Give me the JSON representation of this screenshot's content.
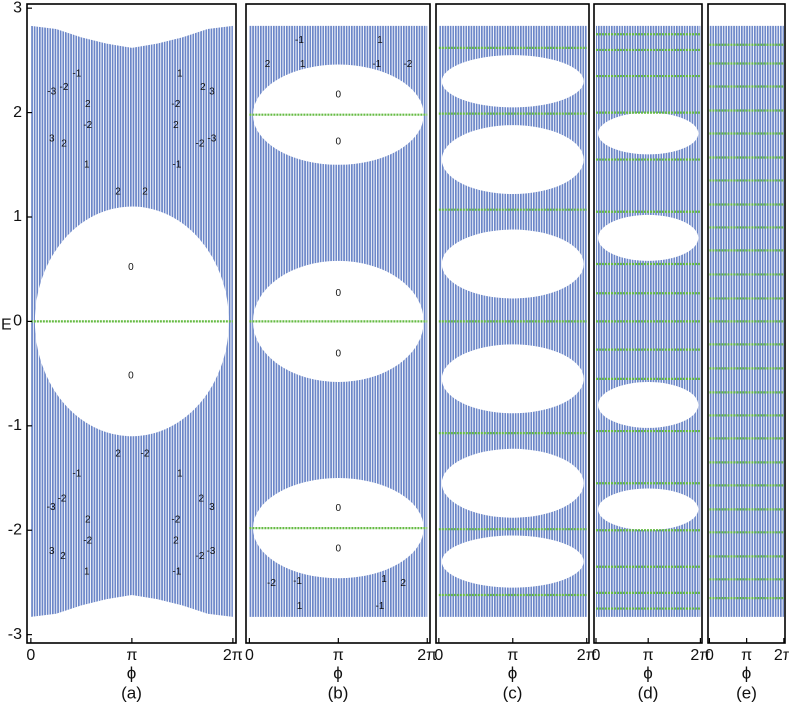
{
  "chart_data": [
    {
      "type": "spectrum",
      "caption": "(a)",
      "xlabel": "ϕ",
      "ylabel": "E",
      "color": "#6b86c8",
      "flat_color": "#66bb44",
      "xlim": [
        -0.12,
        6.38
      ],
      "ylim": [
        -3.08,
        3.04
      ],
      "xticks": [
        0,
        {
          "value": 3.1416,
          "label": "π"
        },
        {
          "value": 6.2832,
          "label": "2π"
        }
      ],
      "yticks": [
        -3,
        -2,
        -1,
        0,
        1,
        2,
        3
      ],
      "x": [
        0,
        0.785,
        1.571,
        2.356,
        3.142,
        3.927,
        4.712,
        5.498,
        6.283
      ],
      "upper": [
        2.83,
        2.8,
        2.72,
        2.66,
        2.62,
        2.66,
        2.72,
        2.8,
        2.83
      ],
      "lower": [
        -2.83,
        -2.8,
        -2.72,
        -2.66,
        -2.62,
        -2.66,
        -2.72,
        -2.8,
        -2.83
      ],
      "gaps": [
        {
          "center": 0,
          "half": 1.1
        }
      ],
      "flat_bands": [
        0
      ],
      "annotations": [
        {
          "x": 1.43,
          "y": 2.37,
          "text": "-1"
        },
        {
          "x": 4.63,
          "y": 2.37,
          "text": "1"
        },
        {
          "x": 0.65,
          "y": 2.2,
          "text": "-3"
        },
        {
          "x": 1.03,
          "y": 2.24,
          "text": "-2"
        },
        {
          "x": 5.35,
          "y": 2.24,
          "text": "2"
        },
        {
          "x": 5.63,
          "y": 2.2,
          "text": "3"
        },
        {
          "x": 1.77,
          "y": 2.08,
          "text": "2"
        },
        {
          "x": 4.51,
          "y": 2.08,
          "text": "-2"
        },
        {
          "x": 1.77,
          "y": 1.88,
          "text": "-2"
        },
        {
          "x": 4.51,
          "y": 1.88,
          "text": "2"
        },
        {
          "x": 0.65,
          "y": 1.75,
          "text": "3"
        },
        {
          "x": 1.03,
          "y": 1.7,
          "text": "2"
        },
        {
          "x": 5.26,
          "y": 1.7,
          "text": "-2"
        },
        {
          "x": 5.63,
          "y": 1.75,
          "text": "-3"
        },
        {
          "x": 1.74,
          "y": 1.5,
          "text": "1"
        },
        {
          "x": 4.54,
          "y": 1.5,
          "text": "-1"
        },
        {
          "x": 2.71,
          "y": 1.24,
          "text": "2"
        },
        {
          "x": 3.55,
          "y": 1.24,
          "text": "2"
        },
        {
          "x": 3.11,
          "y": 0.52,
          "text": "0"
        },
        {
          "x": 3.11,
          "y": -0.52,
          "text": "0"
        },
        {
          "x": 2.71,
          "y": -1.27,
          "text": "2"
        },
        {
          "x": 3.55,
          "y": -1.27,
          "text": "-2"
        },
        {
          "x": 1.43,
          "y": -1.46,
          "text": "-1"
        },
        {
          "x": 4.63,
          "y": -1.46,
          "text": "1"
        },
        {
          "x": 0.63,
          "y": -1.78,
          "text": "-3"
        },
        {
          "x": 0.97,
          "y": -1.7,
          "text": "-2"
        },
        {
          "x": 5.3,
          "y": -1.7,
          "text": "2"
        },
        {
          "x": 5.63,
          "y": -1.78,
          "text": "3"
        },
        {
          "x": 1.77,
          "y": -1.9,
          "text": "2"
        },
        {
          "x": 4.51,
          "y": -1.9,
          "text": "-2"
        },
        {
          "x": 1.77,
          "y": -2.1,
          "text": "-2"
        },
        {
          "x": 4.51,
          "y": -2.1,
          "text": "2"
        },
        {
          "x": 0.65,
          "y": -2.2,
          "text": "3"
        },
        {
          "x": 1.0,
          "y": -2.25,
          "text": "2"
        },
        {
          "x": 5.26,
          "y": -2.25,
          "text": "-2"
        },
        {
          "x": 5.6,
          "y": -2.2,
          "text": "-3"
        },
        {
          "x": 1.74,
          "y": -2.4,
          "text": "1"
        },
        {
          "x": 4.54,
          "y": -2.4,
          "text": "-1"
        }
      ]
    },
    {
      "type": "spectrum",
      "caption": "(b)",
      "xlabel": "ϕ",
      "color": "#6b86c8",
      "flat_color": "#66bb44",
      "xlim": [
        -0.12,
        6.38
      ],
      "ylim": [
        -3.08,
        3.04
      ],
      "xticks": [
        0,
        {
          "value": 3.1416,
          "label": "π"
        },
        {
          "value": 6.2832,
          "label": "2π"
        }
      ],
      "x": [
        0,
        6.283
      ],
      "upper": [
        2.83,
        2.83
      ],
      "lower": [
        -2.83,
        -2.83
      ],
      "gaps": [
        {
          "center": 0,
          "half": 0.58
        },
        {
          "center": 1.98,
          "half": 0.48
        },
        {
          "center": -1.98,
          "half": 0.48
        }
      ],
      "flat_bands": [
        1.98,
        0,
        -1.98
      ],
      "annotations": [
        {
          "x": 1.77,
          "y": 2.69,
          "text": "-1"
        },
        {
          "x": 4.61,
          "y": 2.69,
          "text": "1"
        },
        {
          "x": 0.64,
          "y": 2.46,
          "text": "2"
        },
        {
          "x": 1.88,
          "y": 2.46,
          "text": "1"
        },
        {
          "x": 4.5,
          "y": 2.46,
          "text": "-1"
        },
        {
          "x": 5.6,
          "y": 2.46,
          "text": "-2"
        },
        {
          "x": 3.14,
          "y": 2.17,
          "text": "0"
        },
        {
          "x": 3.14,
          "y": 1.72,
          "text": "0"
        },
        {
          "x": 3.14,
          "y": 0.27,
          "text": "0"
        },
        {
          "x": 3.14,
          "y": -0.31,
          "text": "0"
        },
        {
          "x": 3.14,
          "y": -1.79,
          "text": "0"
        },
        {
          "x": 3.14,
          "y": -2.18,
          "text": "0"
        },
        {
          "x": 0.78,
          "y": -2.51,
          "text": "-2"
        },
        {
          "x": 1.7,
          "y": -2.49,
          "text": "-1"
        },
        {
          "x": 4.76,
          "y": -2.47,
          "text": "1"
        },
        {
          "x": 5.43,
          "y": -2.51,
          "text": "2"
        },
        {
          "x": 1.77,
          "y": -2.73,
          "text": "1"
        },
        {
          "x": 4.61,
          "y": -2.73,
          "text": "-1"
        }
      ]
    },
    {
      "type": "spectrum",
      "caption": "(c)",
      "xlabel": "ϕ",
      "color": "#6b86c8",
      "flat_color": "#66bb44",
      "xlim": [
        -0.12,
        6.38
      ],
      "ylim": [
        -3.08,
        3.04
      ],
      "xticks": [
        0,
        {
          "value": 3.1416,
          "label": "π"
        },
        {
          "value": 6.2832,
          "label": "2π"
        }
      ],
      "x": [
        0,
        6.283
      ],
      "upper": [
        2.83,
        2.83
      ],
      "lower": [
        -2.83,
        -2.83
      ],
      "gaps": [
        {
          "center": 2.3,
          "half": 0.25
        },
        {
          "center": 1.55,
          "half": 0.33
        },
        {
          "center": 0.55,
          "half": 0.33
        },
        {
          "center": -0.55,
          "half": 0.33
        },
        {
          "center": -1.55,
          "half": 0.33
        },
        {
          "center": -2.3,
          "half": 0.25
        }
      ],
      "flat_bands": [
        2.62,
        1.99,
        1.07,
        0,
        -1.07,
        -1.99,
        -2.62
      ]
    },
    {
      "type": "spectrum",
      "caption": "(d)",
      "xlabel": "ϕ",
      "color": "#6b86c8",
      "flat_color": "#66bb44",
      "xlim": [
        -0.12,
        6.38
      ],
      "ylim": [
        -3.08,
        3.04
      ],
      "xticks": [
        0,
        {
          "value": 3.1416,
          "label": "π"
        },
        {
          "value": 6.2832,
          "label": "2π"
        }
      ],
      "x": [
        0,
        6.283
      ],
      "upper": [
        2.83,
        2.83
      ],
      "lower": [
        -2.83,
        -2.83
      ],
      "gaps": [
        {
          "center": 1.8,
          "half": 0.2
        },
        {
          "center": 0.8,
          "half": 0.22
        },
        {
          "center": -0.8,
          "half": 0.22
        },
        {
          "center": -1.8,
          "half": 0.2
        }
      ],
      "flat_bands": [
        2.75,
        2.6,
        2.35,
        2.0,
        1.55,
        1.05,
        0.55,
        0.27,
        0,
        -0.27,
        -0.55,
        -1.05,
        -1.55,
        -2.0,
        -2.35,
        -2.6,
        -2.75
      ]
    },
    {
      "type": "spectrum",
      "caption": "(e)",
      "xlabel": "ϕ",
      "color": "#6b86c8",
      "flat_color": "#66bb44",
      "xlim": [
        -0.12,
        6.38
      ],
      "ylim": [
        -3.08,
        3.04
      ],
      "xticks": [
        0,
        {
          "value": 3.1416,
          "label": "π"
        },
        {
          "value": 6.2832,
          "label": "2π"
        }
      ],
      "x": [
        0,
        6.283
      ],
      "upper": [
        2.83,
        2.83
      ],
      "lower": [
        -2.83,
        -2.83
      ],
      "flat_bands": [
        2.65,
        2.47,
        2.25,
        2.02,
        1.8,
        1.57,
        1.35,
        1.12,
        0.9,
        0.68,
        0.45,
        0.22,
        0,
        -0.22,
        -0.45,
        -0.68,
        -0.9,
        -1.12,
        -1.35,
        -1.57,
        -1.8,
        -2.02,
        -2.25,
        -2.47,
        -2.65
      ]
    }
  ]
}
